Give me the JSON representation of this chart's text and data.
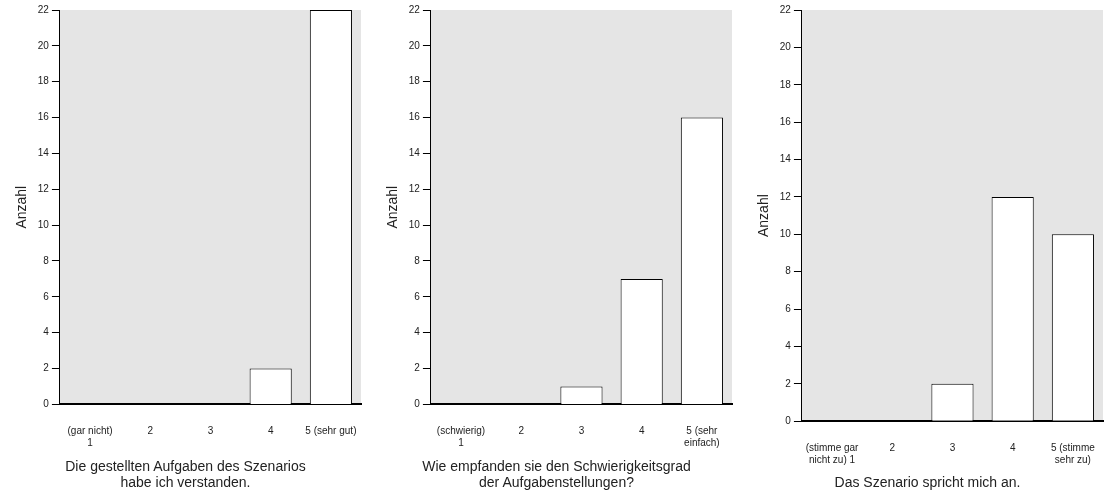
{
  "chart_data": [
    {
      "type": "bar",
      "title": "Die gestellten Aufgaben des Szenarios habe ich verstanden.",
      "ylabel": "Anzahl",
      "categories": [
        "(gar nicht) 1",
        "2",
        "3",
        "4",
        "5 (sehr gut)"
      ],
      "values": [
        0,
        0,
        0,
        2,
        22
      ],
      "color": "#ffffff",
      "ylim": [
        0,
        22
      ],
      "yticks": [
        0,
        2,
        4,
        6,
        8,
        10,
        12,
        14,
        16,
        18,
        20,
        22
      ],
      "grid": false,
      "legend": false
    },
    {
      "type": "bar",
      "title": "Wie empfanden sie den Schwierigkeitsgrad der Aufgabenstellungen?",
      "ylabel": "Anzahl",
      "categories": [
        "(schwierig) 1",
        "2",
        "3",
        "4",
        "5 (sehr einfach)"
      ],
      "values": [
        0,
        0,
        1,
        7,
        16
      ],
      "color": "#ffffff",
      "ylim": [
        0,
        22
      ],
      "yticks": [
        0,
        2,
        4,
        6,
        8,
        10,
        12,
        14,
        16,
        18,
        20,
        22
      ],
      "grid": false,
      "legend": false
    },
    {
      "type": "bar",
      "title": "Das Szenario spricht mich an.",
      "ylabel": "Anzahl",
      "categories": [
        "(stimme gar nicht zu) 1",
        "2",
        "3",
        "4",
        "5 (stimme sehr zu)"
      ],
      "values": [
        0,
        0,
        2,
        12,
        10
      ],
      "color": "#ffffff",
      "ylim": [
        0,
        22
      ],
      "yticks": [
        0,
        2,
        4,
        6,
        8,
        10,
        12,
        14,
        16,
        18,
        20,
        22
      ],
      "grid": false,
      "legend": false
    }
  ]
}
